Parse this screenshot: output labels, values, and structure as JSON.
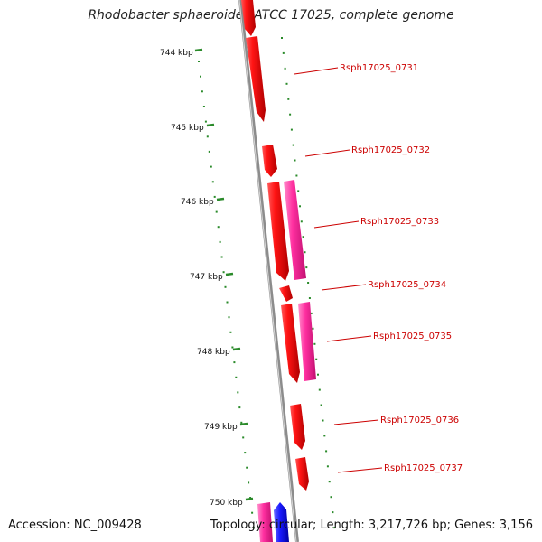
{
  "header": {
    "title": "Rhodobacter sphaeroides ATCC 17025, complete genome"
  },
  "footer": {
    "accession": "Accession: NC_009428",
    "summary": "Topology: circular; Length: 3,217,726 bp; Genes: 3,156"
  },
  "map": {
    "scale_labels": [
      "744 kbp",
      "745 kbp",
      "746 kbp",
      "747 kbp",
      "748 kbp",
      "749 kbp",
      "750 kbp"
    ],
    "gene_labels": [
      "Rsph17025_0731",
      "Rsph17025_0732",
      "Rsph17025_0733",
      "Rsph17025_0734",
      "Rsph17025_0735",
      "Rsph17025_0736",
      "Rsph17025_0737"
    ],
    "colors": {
      "backbone": "#8c8c8c",
      "tick": "#2a8a2a",
      "cds_forward": "#ff1414",
      "cds_reverse": "#ff2fa0",
      "gene_blue": "#1a1aff",
      "label": "#cc0000"
    }
  }
}
